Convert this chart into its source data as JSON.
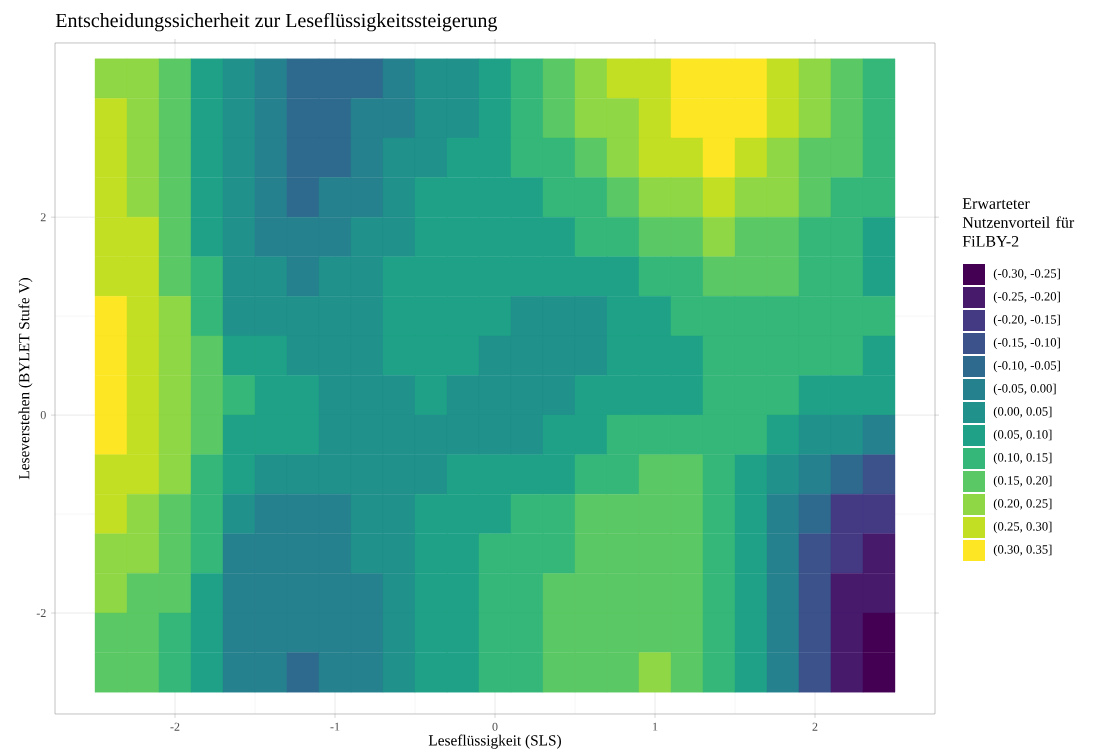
{
  "chart_data": {
    "type": "heatmap",
    "title": "Entscheidungssicherheit zur Leseflüssigkeitssteigerung",
    "xlabel": "Leseflüssigkeit (SLS)",
    "ylabel": "Leseverstehen (BYLET Stufe V)",
    "legend_title": "Erwarteter Nutzenvorteil für FiLBY-2",
    "grid": true,
    "xlim": [
      -2.75,
      2.75
    ],
    "ylim": [
      -3.02,
      3.76
    ],
    "xticks": [
      -2,
      -1,
      0,
      1,
      2
    ],
    "yticks": [
      -2,
      0,
      2
    ],
    "x": [
      -2.4,
      -2.2,
      -2.0,
      -1.8,
      -1.6,
      -1.4,
      -1.2,
      -1.0,
      -0.8,
      -0.6,
      -0.4,
      -0.2,
      0.0,
      0.2,
      0.4,
      0.6,
      0.8,
      1.0,
      1.2,
      1.4,
      1.6,
      1.8,
      2.0,
      2.2,
      2.4
    ],
    "y": [
      3.4,
      3.0,
      2.6,
      2.2,
      1.8,
      1.4,
      1.0,
      0.6,
      0.2,
      -0.2,
      -0.6,
      -1.0,
      -1.4,
      -1.8,
      -2.2,
      -2.6
    ],
    "clim": [
      -0.3,
      0.35
    ],
    "colors": [
      "#440154",
      "#481a6c",
      "#443983",
      "#3b528b",
      "#2e6a8d",
      "#26818e",
      "#21918c",
      "#1fa187",
      "#35b779",
      "#5ac864",
      "#8fd744",
      "#c2df23",
      "#fde725"
    ],
    "cticks": [
      {
        "value": -0.275,
        "label": "(-0.30, -0.25]"
      },
      {
        "value": -0.225,
        "label": "(-0.25, -0.20]"
      },
      {
        "value": -0.175,
        "label": "(-0.20, -0.15]"
      },
      {
        "value": -0.125,
        "label": "(-0.15, -0.10]"
      },
      {
        "value": -0.075,
        "label": "(-0.10, -0.05]"
      },
      {
        "value": -0.025,
        "label": "(-0.05, 0.00]"
      },
      {
        "value": 0.025,
        "label": "(0.00, 0.05]"
      },
      {
        "value": 0.075,
        "label": "(0.05, 0.10]"
      },
      {
        "value": 0.125,
        "label": "(0.10, 0.15]"
      },
      {
        "value": 0.175,
        "label": "(0.15, 0.20]"
      },
      {
        "value": 0.225,
        "label": "(0.20, 0.25]"
      },
      {
        "value": 0.275,
        "label": "(0.25, 0.30]"
      },
      {
        "value": 0.325,
        "label": "(0.30, 0.35]"
      }
    ],
    "cells": [
      [
        0.225,
        0.225,
        0.175,
        0.075,
        0.025,
        -0.025,
        -0.075,
        -0.075,
        -0.075,
        -0.025,
        0.025,
        0.025,
        0.075,
        0.125,
        0.175,
        0.225,
        0.275,
        0.275,
        0.325,
        0.325,
        0.325,
        0.275,
        0.225,
        0.175,
        0.125
      ],
      [
        0.275,
        0.225,
        0.175,
        0.075,
        0.025,
        -0.025,
        -0.075,
        -0.075,
        -0.025,
        -0.025,
        0.025,
        0.025,
        0.075,
        0.125,
        0.175,
        0.225,
        0.225,
        0.275,
        0.325,
        0.325,
        0.325,
        0.275,
        0.225,
        0.175,
        0.125
      ],
      [
        0.275,
        0.225,
        0.175,
        0.075,
        0.025,
        -0.025,
        -0.075,
        -0.075,
        -0.025,
        0.025,
        0.025,
        0.075,
        0.075,
        0.125,
        0.125,
        0.175,
        0.225,
        0.275,
        0.275,
        0.325,
        0.275,
        0.225,
        0.175,
        0.175,
        0.125
      ],
      [
        0.275,
        0.225,
        0.175,
        0.075,
        0.025,
        -0.025,
        -0.075,
        -0.025,
        -0.025,
        0.025,
        0.075,
        0.075,
        0.075,
        0.075,
        0.125,
        0.125,
        0.175,
        0.225,
        0.225,
        0.275,
        0.225,
        0.225,
        0.175,
        0.125,
        0.125
      ],
      [
        0.275,
        0.275,
        0.175,
        0.075,
        0.025,
        -0.025,
        -0.025,
        -0.025,
        0.025,
        0.025,
        0.075,
        0.075,
        0.075,
        0.075,
        0.075,
        0.125,
        0.125,
        0.175,
        0.175,
        0.225,
        0.175,
        0.175,
        0.125,
        0.125,
        0.075
      ],
      [
        0.275,
        0.275,
        0.175,
        0.125,
        0.025,
        0.025,
        -0.025,
        0.025,
        0.025,
        0.075,
        0.075,
        0.075,
        0.075,
        0.075,
        0.075,
        0.075,
        0.075,
        0.125,
        0.125,
        0.175,
        0.175,
        0.175,
        0.125,
        0.125,
        0.075
      ],
      [
        0.325,
        0.275,
        0.225,
        0.125,
        0.025,
        0.025,
        0.025,
        0.025,
        0.025,
        0.075,
        0.075,
        0.075,
        0.075,
        0.025,
        0.025,
        0.025,
        0.075,
        0.075,
        0.125,
        0.125,
        0.125,
        0.125,
        0.125,
        0.125,
        0.125
      ],
      [
        0.325,
        0.275,
        0.225,
        0.175,
        0.075,
        0.075,
        0.025,
        0.025,
        0.025,
        0.075,
        0.075,
        0.075,
        0.025,
        0.025,
        0.025,
        0.025,
        0.075,
        0.075,
        0.075,
        0.125,
        0.125,
        0.125,
        0.125,
        0.125,
        0.075
      ],
      [
        0.325,
        0.275,
        0.225,
        0.175,
        0.125,
        0.075,
        0.075,
        0.025,
        0.025,
        0.025,
        0.075,
        0.025,
        0.025,
        0.025,
        0.025,
        0.075,
        0.075,
        0.075,
        0.075,
        0.125,
        0.125,
        0.125,
        0.075,
        0.075,
        0.075
      ],
      [
        0.325,
        0.275,
        0.225,
        0.175,
        0.075,
        0.075,
        0.075,
        0.025,
        0.025,
        0.025,
        0.025,
        0.025,
        0.025,
        0.025,
        0.075,
        0.075,
        0.125,
        0.125,
        0.125,
        0.125,
        0.125,
        0.075,
        0.025,
        0.025,
        -0.025
      ],
      [
        0.275,
        0.275,
        0.225,
        0.125,
        0.075,
        0.025,
        0.025,
        0.025,
        0.025,
        0.025,
        0.025,
        0.075,
        0.075,
        0.075,
        0.075,
        0.125,
        0.125,
        0.175,
        0.175,
        0.125,
        0.075,
        0.025,
        -0.025,
        -0.075,
        -0.125
      ],
      [
        0.275,
        0.225,
        0.175,
        0.125,
        0.025,
        -0.025,
        -0.025,
        -0.025,
        0.025,
        0.025,
        0.075,
        0.075,
        0.075,
        0.125,
        0.125,
        0.175,
        0.175,
        0.175,
        0.175,
        0.125,
        0.075,
        -0.025,
        -0.075,
        -0.175,
        -0.175
      ],
      [
        0.225,
        0.225,
        0.175,
        0.125,
        -0.025,
        -0.025,
        -0.025,
        -0.025,
        0.025,
        0.025,
        0.075,
        0.075,
        0.125,
        0.125,
        0.125,
        0.175,
        0.175,
        0.175,
        0.175,
        0.125,
        0.075,
        -0.025,
        -0.125,
        -0.175,
        -0.225
      ],
      [
        0.225,
        0.175,
        0.175,
        0.075,
        -0.025,
        -0.025,
        -0.025,
        -0.025,
        -0.025,
        0.025,
        0.075,
        0.075,
        0.125,
        0.125,
        0.175,
        0.175,
        0.175,
        0.175,
        0.175,
        0.125,
        0.075,
        -0.025,
        -0.125,
        -0.225,
        -0.225
      ],
      [
        0.175,
        0.175,
        0.125,
        0.075,
        -0.025,
        -0.025,
        -0.025,
        -0.025,
        -0.025,
        0.025,
        0.075,
        0.075,
        0.125,
        0.125,
        0.175,
        0.175,
        0.175,
        0.175,
        0.175,
        0.125,
        0.075,
        -0.025,
        -0.125,
        -0.225,
        -0.275
      ],
      [
        0.175,
        0.175,
        0.125,
        0.075,
        -0.025,
        -0.025,
        -0.075,
        -0.025,
        -0.025,
        0.025,
        0.075,
        0.075,
        0.125,
        0.125,
        0.175,
        0.175,
        0.175,
        0.225,
        0.175,
        0.125,
        0.075,
        -0.025,
        -0.125,
        -0.225,
        -0.275
      ]
    ]
  }
}
